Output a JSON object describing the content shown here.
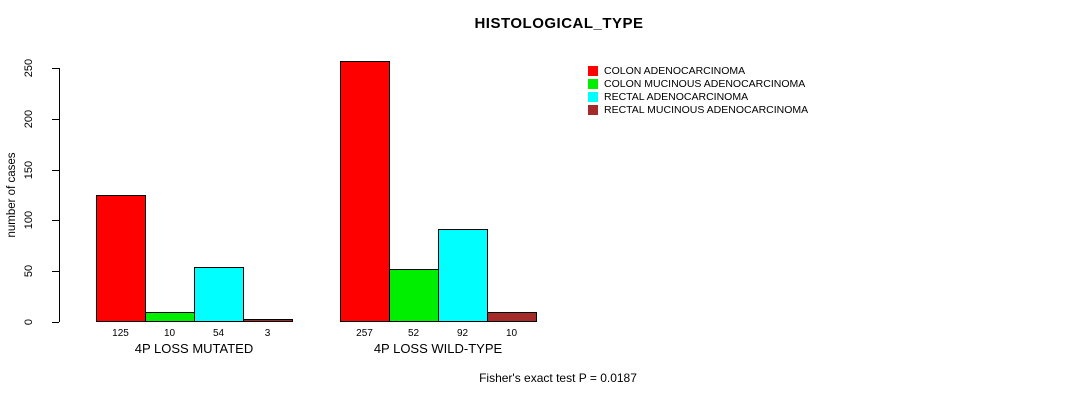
{
  "title": "HISTOLOGICAL_TYPE",
  "footer": "Fisher's exact test P = 0.0187",
  "y_axis": {
    "label": "number of cases",
    "ticks": [
      0,
      50,
      100,
      150,
      200,
      250
    ]
  },
  "chart_data": {
    "type": "bar",
    "title": "HISTOLOGICAL_TYPE",
    "xlabel": "",
    "ylabel": "number of cases",
    "ylim": [
      0,
      250
    ],
    "yticks": [
      0,
      50,
      100,
      150,
      200,
      250
    ],
    "grid": false,
    "legend_position": "top-right",
    "bar_value_labels_shown": true,
    "annotation": "Fisher's exact test P = 0.0187",
    "categories": [
      "4P LOSS MUTATED",
      "4P LOSS WILD-TYPE"
    ],
    "series": [
      {
        "name": "COLON ADENOCARCINOMA",
        "color": "#FF0000",
        "values": [
          125,
          257
        ]
      },
      {
        "name": "COLON MUCINOUS ADENOCARCINOMA",
        "color": "#00EE00",
        "values": [
          10,
          52
        ]
      },
      {
        "name": "RECTAL ADENOCARCINOMA",
        "color": "#00FFFF",
        "values": [
          54,
          92
        ]
      },
      {
        "name": "RECTAL MUCINOUS ADENOCARCINOMA",
        "color": "#A52A2A",
        "values": [
          3,
          10
        ]
      }
    ],
    "groups": [
      {
        "label": "4P LOSS MUTATED",
        "values": [
          125,
          10,
          54,
          3
        ]
      },
      {
        "label": "4P LOSS WILD-TYPE",
        "values": [
          257,
          52,
          92,
          10
        ]
      }
    ]
  },
  "colors": {
    "bar_border": "#000000",
    "text": "#000000",
    "background": "#FFFFFF"
  }
}
